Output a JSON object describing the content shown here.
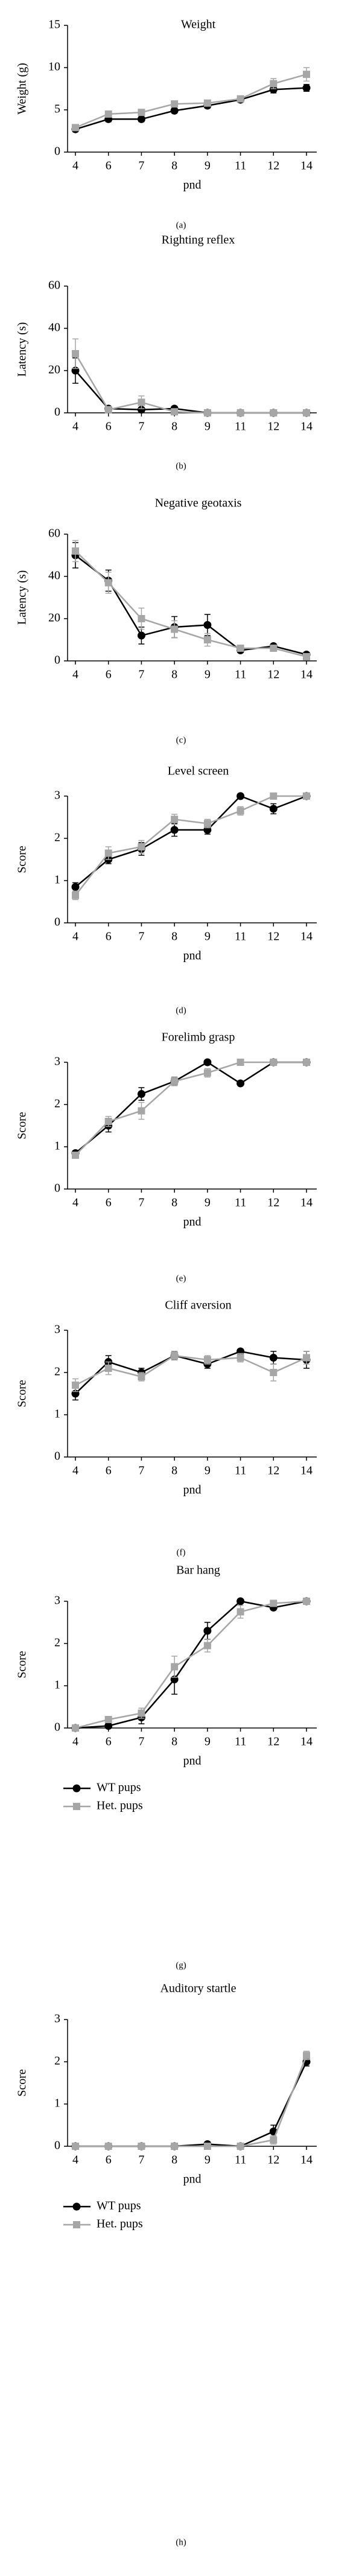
{
  "chart_data": [
    {
      "type": "line",
      "title": "Weight",
      "ylabel": "Weight (g)",
      "xlabel": "pnd",
      "caption": "(a)",
      "categories": [
        4,
        6,
        7,
        8,
        9,
        11,
        12,
        14
      ],
      "ylim": [
        0,
        15
      ],
      "yticks": [
        0,
        5,
        10,
        15
      ],
      "series": [
        {
          "color": "#000000",
          "marker": "circle",
          "values": [
            2.7,
            3.9,
            3.9,
            4.9,
            5.5,
            6.2,
            7.4,
            7.6
          ],
          "errors": [
            0.3,
            0.3,
            0.3,
            0.3,
            0.3,
            0.3,
            0.4,
            0.4
          ]
        },
        {
          "color": "#a6a6a6",
          "marker": "square",
          "values": [
            2.9,
            4.5,
            4.7,
            5.7,
            5.8,
            6.3,
            8.1,
            9.2
          ],
          "errors": [
            0.3,
            0.3,
            0.3,
            0.3,
            0.3,
            0.3,
            0.6,
            0.8
          ]
        }
      ]
    },
    {
      "type": "line",
      "title": "Righting reflex",
      "ylabel": "Latency (s)",
      "caption": "(b)",
      "categories": [
        4,
        6,
        7,
        8,
        9,
        11,
        12,
        14
      ],
      "ylim": [
        0,
        60
      ],
      "yticks": [
        0,
        20,
        40,
        60
      ],
      "series": [
        {
          "color": "#000000",
          "marker": "circle",
          "values": [
            20,
            2,
            1.5,
            2,
            0,
            0,
            0,
            0
          ],
          "errors": [
            6,
            1,
            1,
            1,
            0,
            0,
            0,
            0
          ]
        },
        {
          "color": "#a6a6a6",
          "marker": "square",
          "values": [
            28,
            1.5,
            5,
            0.5,
            0,
            0,
            0,
            0
          ],
          "errors": [
            7,
            1,
            3,
            0.5,
            0,
            0,
            0,
            0
          ]
        }
      ]
    },
    {
      "type": "line",
      "title": "Negative geotaxis",
      "ylabel": "Latency (s)",
      "caption": "(c)",
      "categories": [
        4,
        6,
        7,
        8,
        9,
        11,
        12,
        14
      ],
      "ylim": [
        0,
        60
      ],
      "yticks": [
        0,
        20,
        40,
        60
      ],
      "series": [
        {
          "color": "#000000",
          "marker": "circle",
          "values": [
            50,
            38,
            12,
            16,
            17,
            5,
            7,
            3
          ],
          "errors": [
            6,
            5,
            4,
            5,
            5,
            1,
            1,
            1
          ]
        },
        {
          "color": "#a6a6a6",
          "marker": "square",
          "values": [
            52,
            37,
            20,
            15,
            10,
            6,
            6,
            2
          ],
          "errors": [
            5,
            5,
            5,
            4,
            3,
            1,
            1,
            1
          ]
        }
      ]
    },
    {
      "type": "line",
      "title": "Level screen",
      "ylabel": "Score",
      "xlabel": "pnd",
      "caption": "(d)",
      "categories": [
        4,
        6,
        7,
        8,
        9,
        11,
        12,
        14
      ],
      "ylim": [
        0,
        3
      ],
      "yticks": [
        0,
        1,
        2,
        3
      ],
      "series": [
        {
          "color": "#000000",
          "marker": "circle",
          "values": [
            0.85,
            1.5,
            1.75,
            2.2,
            2.2,
            3.0,
            2.7,
            3.0
          ],
          "errors": [
            0.1,
            0.1,
            0.15,
            0.15,
            0.1,
            0,
            0.12,
            0
          ]
        },
        {
          "color": "#a6a6a6",
          "marker": "square",
          "values": [
            0.65,
            1.65,
            1.8,
            2.45,
            2.35,
            2.65,
            3.0,
            3.0
          ],
          "errors": [
            0.1,
            0.15,
            0.15,
            0.12,
            0.1,
            0.1,
            0,
            0
          ]
        }
      ]
    },
    {
      "type": "line",
      "title": "Forelimb grasp",
      "ylabel": "Score",
      "xlabel": "pnd",
      "caption": "(e)",
      "categories": [
        4,
        6,
        7,
        8,
        9,
        11,
        12,
        14
      ],
      "ylim": [
        0,
        3
      ],
      "yticks": [
        0,
        1,
        2,
        3
      ],
      "series": [
        {
          "color": "#000000",
          "marker": "circle",
          "values": [
            0.85,
            1.5,
            2.25,
            2.55,
            3.0,
            2.5,
            3.0,
            3.0
          ],
          "errors": [
            0.05,
            0.15,
            0.15,
            0.1,
            0,
            0,
            0,
            0
          ]
        },
        {
          "color": "#a6a6a6",
          "marker": "square",
          "values": [
            0.8,
            1.6,
            1.85,
            2.55,
            2.75,
            3.0,
            3.0,
            3.0
          ],
          "errors": [
            0.05,
            0.12,
            0.2,
            0.1,
            0.1,
            0,
            0,
            0
          ]
        }
      ]
    },
    {
      "type": "line",
      "title": "Cliff aversion",
      "ylabel": "Score",
      "xlabel": "pnd",
      "caption": "(f)",
      "categories": [
        4,
        6,
        7,
        8,
        9,
        11,
        12,
        14
      ],
      "ylim": [
        0,
        3
      ],
      "yticks": [
        0,
        1,
        2,
        3
      ],
      "series": [
        {
          "color": "#000000",
          "marker": "circle",
          "values": [
            1.5,
            2.25,
            2.0,
            2.4,
            2.2,
            2.5,
            2.35,
            2.3
          ],
          "errors": [
            0.15,
            0.15,
            0.1,
            0.1,
            0.1,
            0.05,
            0.15,
            0.2
          ]
        },
        {
          "color": "#a6a6a6",
          "marker": "square",
          "values": [
            1.7,
            2.1,
            1.9,
            2.4,
            2.3,
            2.35,
            2.0,
            2.35
          ],
          "errors": [
            0.15,
            0.15,
            0.1,
            0.1,
            0.1,
            0.1,
            0.2,
            0.15
          ]
        }
      ]
    },
    {
      "type": "line",
      "title": "Bar hang",
      "ylabel": "Score",
      "xlabel": "pnd",
      "caption": "(g)",
      "legend": true,
      "categories": [
        4,
        6,
        7,
        8,
        9,
        11,
        12,
        14
      ],
      "ylim": [
        0,
        3
      ],
      "yticks": [
        0,
        1,
        2,
        3
      ],
      "series": [
        {
          "name": "WT pups",
          "color": "#000000",
          "marker": "circle",
          "values": [
            0,
            0.05,
            0.25,
            1.15,
            2.3,
            3.0,
            2.85,
            3.0
          ],
          "errors": [
            0,
            0.05,
            0.15,
            0.35,
            0.2,
            0,
            0.05,
            0
          ]
        },
        {
          "name": "Het. pups",
          "color": "#a6a6a6",
          "marker": "square",
          "values": [
            0,
            0.2,
            0.35,
            1.45,
            1.95,
            2.75,
            2.95,
            3.0
          ],
          "errors": [
            0,
            0.05,
            0.12,
            0.25,
            0.15,
            0.15,
            0.05,
            0
          ]
        }
      ]
    },
    {
      "type": "line",
      "title": "Auditory startle",
      "ylabel": "Score",
      "xlabel": "pnd",
      "caption": "(h)",
      "legend": true,
      "categories": [
        4,
        6,
        7,
        8,
        9,
        11,
        12,
        14
      ],
      "ylim": [
        0,
        3
      ],
      "yticks": [
        0,
        1,
        2,
        3
      ],
      "series": [
        {
          "name": "WT pups",
          "color": "#000000",
          "marker": "circle",
          "values": [
            0,
            0,
            0,
            0,
            0.05,
            0,
            0.35,
            2.0
          ],
          "errors": [
            0,
            0,
            0,
            0,
            0.05,
            0,
            0.15,
            0.1
          ]
        },
        {
          "name": "Het. pups",
          "color": "#a6a6a6",
          "marker": "square",
          "values": [
            0,
            0,
            0,
            0,
            0,
            0,
            0.15,
            2.15
          ],
          "errors": [
            0,
            0,
            0,
            0,
            0,
            0,
            0.1,
            0.1
          ]
        }
      ]
    }
  ]
}
